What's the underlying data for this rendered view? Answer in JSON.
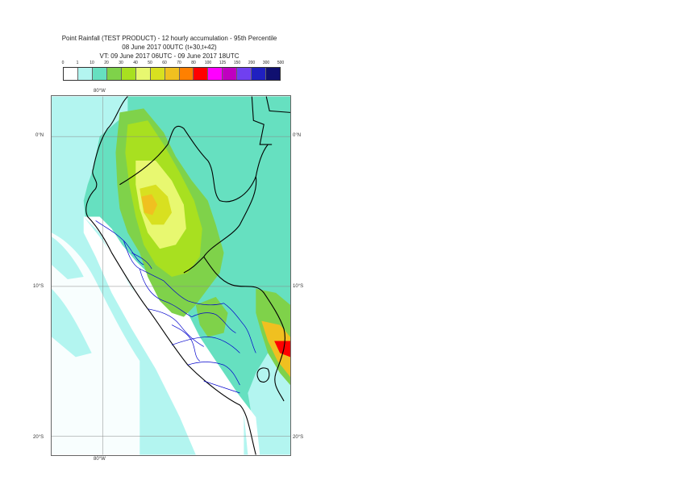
{
  "title": {
    "line1": "Point Rainfall (TEST PRODUCT) - 12 hourly accumulation - 95th Percentile",
    "line2": "08 June 2017 00UTC (t+30,t+42)",
    "line3": "VT: 09 June 2017 06UTC - 09 June 2017 18UTC"
  },
  "legend": {
    "thresholds": [
      "0",
      "1",
      "10",
      "20",
      "30",
      "40",
      "50",
      "60",
      "70",
      "80",
      "100",
      "125",
      "150",
      "200",
      "300",
      "500"
    ],
    "colors": [
      "#ffffff",
      "#b3f5f0",
      "#66e0c0",
      "#7fd24a",
      "#a8e020",
      "#e8f870",
      "#d8e020",
      "#f0c020",
      "#ff8000",
      "#ff0000",
      "#ff00ff",
      "#c000c0",
      "#7040f0",
      "#2020c0",
      "#101070"
    ]
  },
  "axes": {
    "top_lon": "80°W",
    "bottom_lon": "80°W",
    "lat_0_left": "0°N",
    "lat_0_right": "0°N",
    "lat_10_left": "10°S",
    "lat_10_right": "10°S",
    "lat_20_left": "20°S",
    "lat_20_right": "20°S"
  },
  "colors": {
    "ocean": "#b3f5f0",
    "land": "#ffffff",
    "light_rain": "#66e0c0",
    "moderate": "#7fd24a",
    "heavier": "#a8e020",
    "pale_yellow": "#e8f870",
    "orange": "#f0c020",
    "red": "#ff0000",
    "borders_country": "#000000",
    "borders_region": "#0000cc",
    "grid": "#888888"
  }
}
